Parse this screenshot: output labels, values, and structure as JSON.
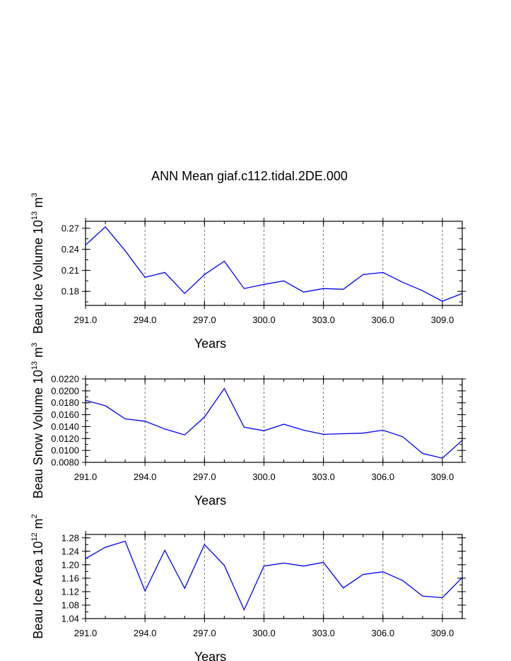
{
  "title": "ANN Mean giaf.c112.tidal.2DE.000",
  "colors": {
    "line": "#0000ff",
    "axis": "#000000",
    "grid": "#555555"
  },
  "chart_data": [
    {
      "type": "line",
      "xlabel": "Years",
      "ylabel": "Beau Ice Volume 10",
      "ylabel_exp": "13",
      "ylabel_unit": " m",
      "ylabel_unit_exp": "3",
      "xlim": [
        291,
        310
      ],
      "ylim": [
        0.16,
        0.28
      ],
      "xticks": [
        291,
        294,
        297,
        300,
        303,
        306,
        309
      ],
      "xtick_labels": [
        "291.0",
        "294.0",
        "297.0",
        "300.0",
        "303.0",
        "306.0",
        "309.0"
      ],
      "yticks": [
        0.18,
        0.21,
        0.24,
        0.27
      ],
      "ytick_labels": [
        "0.18",
        "0.21",
        "0.24",
        "0.27"
      ],
      "x": [
        291,
        292,
        293,
        294,
        295,
        296,
        297,
        298,
        299,
        300,
        301,
        302,
        303,
        304,
        305,
        306,
        307,
        308,
        309,
        310
      ],
      "values": [
        0.246,
        0.272,
        0.238,
        0.2,
        0.207,
        0.177,
        0.204,
        0.223,
        0.184,
        0.19,
        0.195,
        0.179,
        0.184,
        0.183,
        0.204,
        0.207,
        0.193,
        0.181,
        0.166,
        0.177
      ]
    },
    {
      "type": "line",
      "xlabel": "Years",
      "ylabel": "Beau Snow Volume 10",
      "ylabel_exp": "13",
      "ylabel_unit": " m",
      "ylabel_unit_exp": "3",
      "xlim": [
        291,
        310
      ],
      "ylim": [
        0.008,
        0.022
      ],
      "xticks": [
        291,
        294,
        297,
        300,
        303,
        306,
        309
      ],
      "xtick_labels": [
        "291.0",
        "294.0",
        "297.0",
        "300.0",
        "303.0",
        "306.0",
        "309.0"
      ],
      "yticks": [
        0.008,
        0.01,
        0.012,
        0.014,
        0.016,
        0.018,
        0.02,
        0.022
      ],
      "ytick_labels": [
        "0.0080",
        "0.0100",
        "0.0120",
        "0.0140",
        "0.0160",
        "0.0180",
        "0.0200",
        "0.0220"
      ],
      "x": [
        291,
        292,
        293,
        294,
        295,
        296,
        297,
        298,
        299,
        300,
        301,
        302,
        303,
        304,
        305,
        306,
        307,
        308,
        309,
        310
      ],
      "values": [
        0.0184,
        0.0175,
        0.0153,
        0.0149,
        0.0136,
        0.0126,
        0.0156,
        0.0204,
        0.0139,
        0.0133,
        0.0144,
        0.0134,
        0.0127,
        0.0128,
        0.0129,
        0.0134,
        0.0123,
        0.0095,
        0.0087,
        0.0117
      ]
    },
    {
      "type": "line",
      "xlabel": "Years",
      "ylabel": "Beau Ice Area 10",
      "ylabel_exp": "12",
      "ylabel_unit": " m",
      "ylabel_unit_exp": "2",
      "xlim": [
        291,
        310
      ],
      "ylim": [
        1.04,
        1.29
      ],
      "xticks": [
        291,
        294,
        297,
        300,
        303,
        306,
        309
      ],
      "xtick_labels": [
        "291.0",
        "294.0",
        "297.0",
        "300.0",
        "303.0",
        "306.0",
        "309.0"
      ],
      "yticks": [
        1.04,
        1.08,
        1.12,
        1.16,
        1.2,
        1.24,
        1.28
      ],
      "ytick_labels": [
        "1.04",
        "1.08",
        "1.12",
        "1.16",
        "1.20",
        "1.24",
        "1.28"
      ],
      "x": [
        291,
        292,
        293,
        294,
        295,
        296,
        297,
        298,
        299,
        300,
        301,
        302,
        303,
        304,
        305,
        306,
        307,
        308,
        309,
        310
      ],
      "values": [
        1.218,
        1.252,
        1.27,
        1.122,
        1.243,
        1.13,
        1.26,
        1.198,
        1.066,
        1.196,
        1.205,
        1.196,
        1.207,
        1.131,
        1.171,
        1.179,
        1.153,
        1.107,
        1.102,
        1.162
      ]
    }
  ]
}
